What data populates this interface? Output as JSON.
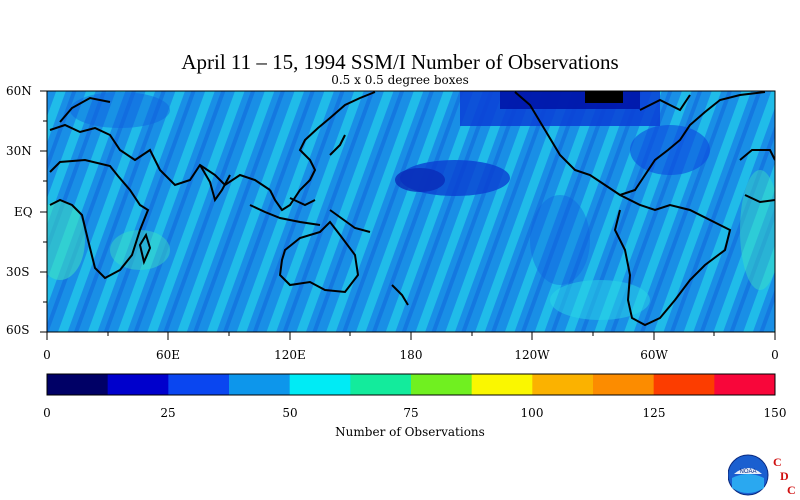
{
  "title": "April 11 – 15, 1994 SSM/I Number of Observations",
  "subtitle": "0.5 x 0.5 degree boxes",
  "lat_labels": [
    "60N",
    "30N",
    "EQ",
    "30S",
    "60S"
  ],
  "lon_labels": [
    "0",
    "60E",
    "120E",
    "180",
    "120W",
    "60W",
    "0"
  ],
  "colorbar": {
    "title": "Number of Observations",
    "tick_labels": [
      "0",
      "25",
      "50",
      "75",
      "100",
      "125",
      "150"
    ],
    "range": [
      0,
      150
    ],
    "colors": [
      "#000066",
      "#0000cc",
      "#0a46f0",
      "#0d96eb",
      "#00ebf5",
      "#13eb9c",
      "#70f020",
      "#faf700",
      "#fbb200",
      "#fc8c00",
      "#fc3d00",
      "#f8063a"
    ]
  },
  "map_colors": {
    "background": "#1596e8",
    "ocean_dominant": "#1e9ae6",
    "high_obs": "#1fdce8",
    "low_obs": "#0c4ae0",
    "very_low": "#0000a0",
    "coastline": "#000000"
  },
  "logo": {
    "letters": [
      "C",
      "D",
      "C"
    ],
    "agency": "NOAA"
  }
}
